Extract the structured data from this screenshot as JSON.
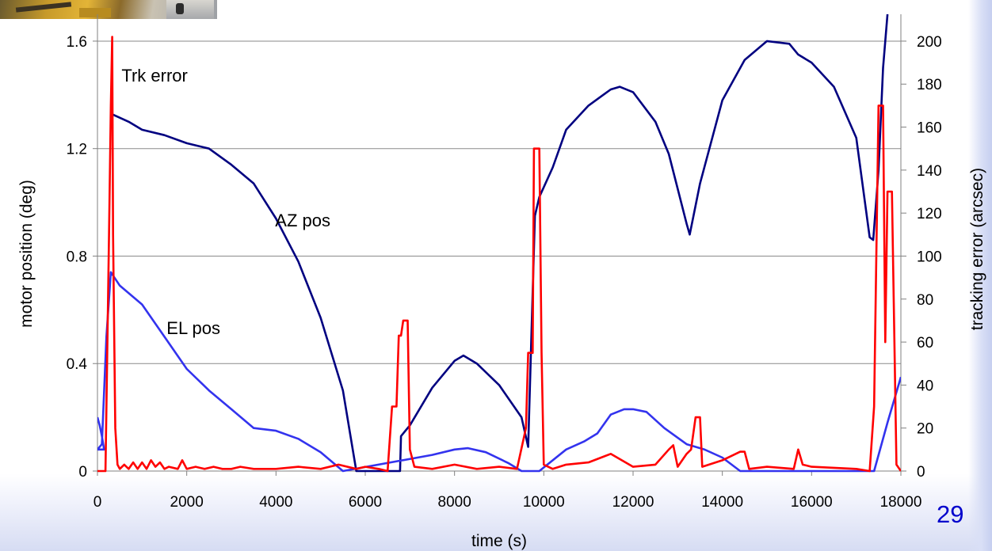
{
  "slide": {
    "number": "29"
  },
  "chart_data": {
    "type": "line",
    "xlabel": "time (s)",
    "ylabel": "motor position (deg)",
    "y2label": "tracking error (arcsec)",
    "xlim": [
      0,
      18000
    ],
    "ylim": [
      0,
      1.7
    ],
    "y2lim": [
      0,
      212.5
    ],
    "x_ticks": [
      0,
      2000,
      4000,
      6000,
      8000,
      10000,
      12000,
      14000,
      16000,
      18000
    ],
    "y_ticks": [
      0,
      0.4,
      0.8,
      1.2,
      1.6
    ],
    "y_tick_labels": [
      "0",
      "0.4",
      "0.8",
      "1.2",
      "1.6"
    ],
    "y2_ticks": [
      0,
      20,
      40,
      60,
      80,
      100,
      120,
      140,
      160,
      180,
      200
    ],
    "grid": "horizontal",
    "colors": {
      "az": "#000080",
      "el": "#3333ee",
      "trk": "#ff0000"
    },
    "annotations": [
      {
        "text": "Trk error",
        "series": "trk",
        "x": 1280,
        "y": 1.45
      },
      {
        "text": "AZ pos",
        "series": "az",
        "x": 4600,
        "y": 0.91
      },
      {
        "text": "EL pos",
        "series": "el",
        "x": 2150,
        "y": 0.51
      }
    ],
    "series": [
      {
        "id": "az",
        "axis": "left",
        "points": [
          [
            300,
            1.33
          ],
          [
            700,
            1.3
          ],
          [
            1000,
            1.27
          ],
          [
            1500,
            1.25
          ],
          [
            2000,
            1.22
          ],
          [
            2500,
            1.2
          ],
          [
            3000,
            1.14
          ],
          [
            3500,
            1.07
          ],
          [
            4000,
            0.94
          ],
          [
            4500,
            0.78
          ],
          [
            5000,
            0.57
          ],
          [
            5500,
            0.3
          ],
          [
            5800,
            0.0
          ],
          [
            6780,
            0.0
          ],
          [
            6800,
            0.13
          ],
          [
            7000,
            0.17
          ],
          [
            7500,
            0.31
          ],
          [
            8000,
            0.41
          ],
          [
            8200,
            0.43
          ],
          [
            8500,
            0.4
          ],
          [
            9000,
            0.32
          ],
          [
            9500,
            0.2
          ],
          [
            9650,
            0.09
          ],
          [
            9800,
            0.95
          ],
          [
            9900,
            1.02
          ],
          [
            10200,
            1.13
          ],
          [
            10500,
            1.27
          ],
          [
            11000,
            1.36
          ],
          [
            11500,
            1.42
          ],
          [
            11700,
            1.43
          ],
          [
            12000,
            1.41
          ],
          [
            12500,
            1.3
          ],
          [
            12800,
            1.18
          ],
          [
            13200,
            0.92
          ],
          [
            13270,
            0.88
          ],
          [
            13500,
            1.07
          ],
          [
            14000,
            1.38
          ],
          [
            14500,
            1.53
          ],
          [
            15000,
            1.6
          ],
          [
            15500,
            1.59
          ],
          [
            15700,
            1.55
          ],
          [
            16000,
            1.52
          ],
          [
            16500,
            1.43
          ],
          [
            17000,
            1.24
          ],
          [
            17300,
            0.87
          ],
          [
            17380,
            0.86
          ],
          [
            17500,
            1.12
          ],
          [
            17600,
            1.5
          ],
          [
            17700,
            1.7
          ]
        ]
      },
      {
        "id": "el",
        "axis": "left",
        "points": [
          [
            0,
            0.2
          ],
          [
            50,
            0.17
          ],
          [
            100,
            0.13
          ],
          [
            150,
            0.08
          ],
          [
            0,
            0.08
          ],
          [
            100,
            0.1
          ],
          [
            200,
            0.5
          ],
          [
            300,
            0.74
          ],
          [
            500,
            0.69
          ],
          [
            1000,
            0.62
          ],
          [
            1500,
            0.5
          ],
          [
            2000,
            0.38
          ],
          [
            2500,
            0.3
          ],
          [
            3000,
            0.23
          ],
          [
            3500,
            0.16
          ],
          [
            4000,
            0.15
          ],
          [
            4500,
            0.12
          ],
          [
            5000,
            0.07
          ],
          [
            5500,
            0.0
          ],
          [
            7500,
            0.06
          ],
          [
            8000,
            0.08
          ],
          [
            8300,
            0.085
          ],
          [
            8700,
            0.07
          ],
          [
            9200,
            0.03
          ],
          [
            9500,
            0.0
          ],
          [
            9900,
            0.0
          ],
          [
            10500,
            0.08
          ],
          [
            10900,
            0.11
          ],
          [
            11200,
            0.14
          ],
          [
            11500,
            0.21
          ],
          [
            11800,
            0.23
          ],
          [
            12000,
            0.23
          ],
          [
            12300,
            0.22
          ],
          [
            12700,
            0.16
          ],
          [
            13200,
            0.1
          ],
          [
            13600,
            0.08
          ],
          [
            14000,
            0.05
          ],
          [
            14400,
            0.0
          ],
          [
            17400,
            0.0
          ],
          [
            17700,
            0.18
          ],
          [
            18000,
            0.35
          ]
        ]
      },
      {
        "id": "trk",
        "axis": "right",
        "points": [
          [
            0,
            0
          ],
          [
            180,
            0
          ],
          [
            260,
            110
          ],
          [
            300,
            170
          ],
          [
            330,
            202
          ],
          [
            350,
            110
          ],
          [
            400,
            20
          ],
          [
            450,
            3
          ],
          [
            500,
            1
          ],
          [
            600,
            3
          ],
          [
            700,
            1
          ],
          [
            800,
            4
          ],
          [
            900,
            1
          ],
          [
            1000,
            4
          ],
          [
            1100,
            1
          ],
          [
            1200,
            5
          ],
          [
            1300,
            2
          ],
          [
            1400,
            4
          ],
          [
            1500,
            1
          ],
          [
            1600,
            2
          ],
          [
            1800,
            1
          ],
          [
            1900,
            5
          ],
          [
            2000,
            1
          ],
          [
            2200,
            2
          ],
          [
            2400,
            1
          ],
          [
            2600,
            2
          ],
          [
            2800,
            1
          ],
          [
            3000,
            1
          ],
          [
            3200,
            2
          ],
          [
            3500,
            1
          ],
          [
            4000,
            1
          ],
          [
            4500,
            2
          ],
          [
            5000,
            1
          ],
          [
            5400,
            3
          ],
          [
            5800,
            1
          ],
          [
            6000,
            2
          ],
          [
            6300,
            1
          ],
          [
            6500,
            0
          ],
          [
            6600,
            30
          ],
          [
            6700,
            30
          ],
          [
            6750,
            63
          ],
          [
            6800,
            63
          ],
          [
            6850,
            70
          ],
          [
            6950,
            70
          ],
          [
            7000,
            10
          ],
          [
            7100,
            2
          ],
          [
            7500,
            1
          ],
          [
            8000,
            3
          ],
          [
            8500,
            1
          ],
          [
            9000,
            2
          ],
          [
            9400,
            1
          ],
          [
            9600,
            20
          ],
          [
            9650,
            55
          ],
          [
            9750,
            55
          ],
          [
            9780,
            150
          ],
          [
            9900,
            150
          ],
          [
            9950,
            55
          ],
          [
            10000,
            3
          ],
          [
            10200,
            1
          ],
          [
            10500,
            3
          ],
          [
            11000,
            4
          ],
          [
            11500,
            8
          ],
          [
            12000,
            2
          ],
          [
            12500,
            3
          ],
          [
            12800,
            10
          ],
          [
            12900,
            12
          ],
          [
            13000,
            2
          ],
          [
            13200,
            8
          ],
          [
            13300,
            10
          ],
          [
            13400,
            25
          ],
          [
            13500,
            25
          ],
          [
            13550,
            2
          ],
          [
            14000,
            5
          ],
          [
            14400,
            9
          ],
          [
            14500,
            9
          ],
          [
            14600,
            1
          ],
          [
            15000,
            2
          ],
          [
            15600,
            1
          ],
          [
            15700,
            10
          ],
          [
            15800,
            3
          ],
          [
            16000,
            2
          ],
          [
            17000,
            1
          ],
          [
            17300,
            0
          ],
          [
            17400,
            30
          ],
          [
            17500,
            170
          ],
          [
            17600,
            170
          ],
          [
            17650,
            60
          ],
          [
            17700,
            130
          ],
          [
            17800,
            130
          ],
          [
            17900,
            3
          ],
          [
            18000,
            0
          ]
        ]
      }
    ]
  }
}
